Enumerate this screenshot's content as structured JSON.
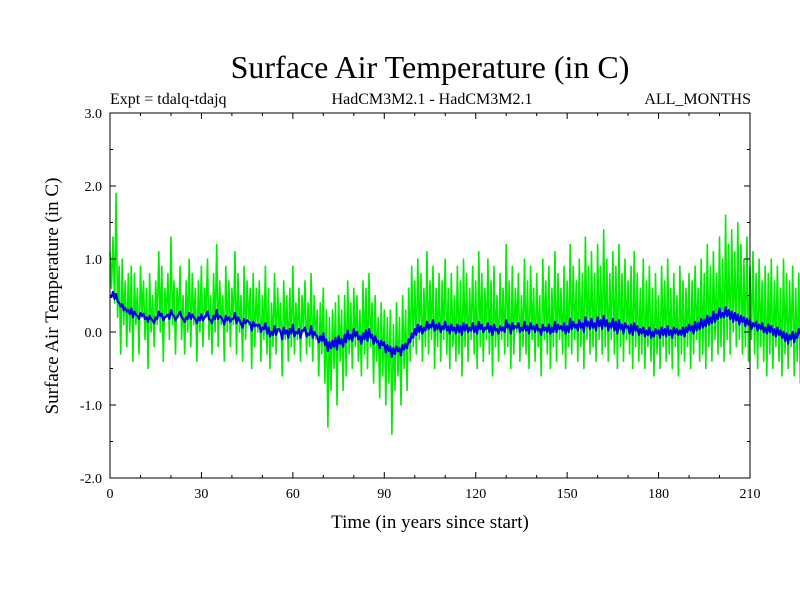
{
  "chart_data": {
    "type": "line",
    "title": "Surface Air Temperature (in C)",
    "subtitle_left": "Expt = tdalq-tdajq",
    "subtitle_center": "HadCM3M2.1 - HadCM3M2.1",
    "subtitle_right": "ALL_MONTHS",
    "xlabel": "Time (in years since start)",
    "ylabel": "Surface Air Temperature (in C)",
    "xlim": [
      0,
      210
    ],
    "ylim": [
      -2.0,
      3.0
    ],
    "x_ticks": [
      0,
      30,
      60,
      90,
      120,
      150,
      180,
      210
    ],
    "x_tick_labels": [
      "0",
      "30",
      "60",
      "90",
      "120",
      "150",
      "180",
      "210"
    ],
    "y_ticks": [
      -2.0,
      -1.0,
      0.0,
      1.0,
      2.0,
      3.0
    ],
    "y_tick_labels": [
      "-2.0",
      "-1.0",
      "0.0",
      "1.0",
      "2.0",
      "3.0"
    ],
    "series": [
      {
        "name": "monthly",
        "color": "#00ee00",
        "x_start": 0,
        "x_step": 0.5,
        "values": [
          1.1,
          0.6,
          1.3,
          0.4,
          1.9,
          0.2,
          0.9,
          -0.3,
          1.0,
          0.1,
          0.7,
          -0.2,
          0.8,
          0.0,
          0.9,
          -0.4,
          0.8,
          0.1,
          0.6,
          -0.3,
          0.9,
          0.2,
          0.7,
          -0.1,
          0.6,
          -0.5,
          0.8,
          0.0,
          0.5,
          -0.2,
          0.7,
          0.1,
          1.1,
          0.0,
          0.9,
          -0.4,
          0.6,
          0.2,
          0.8,
          -0.1,
          1.3,
          0.1,
          0.7,
          -0.3,
          0.6,
          0.2,
          0.9,
          -0.1,
          0.5,
          -0.3,
          0.7,
          0.0,
          1.0,
          -0.2,
          0.8,
          0.1,
          0.6,
          -0.4,
          0.7,
          0.0,
          0.9,
          -0.2,
          0.6,
          0.2,
          1.0,
          -0.1,
          0.5,
          -0.3,
          0.8,
          0.0,
          1.2,
          -0.2,
          0.7,
          0.1,
          0.5,
          -0.4,
          0.9,
          0.0,
          0.7,
          -0.2,
          0.6,
          0.1,
          1.1,
          -0.3,
          0.8,
          0.0,
          0.5,
          -0.4,
          0.9,
          -0.1,
          0.7,
          0.1,
          0.6,
          -0.5,
          0.8,
          -0.2,
          0.6,
          0.0,
          0.7,
          -0.4,
          0.5,
          -0.1,
          0.9,
          -0.3,
          0.6,
          -0.5,
          0.4,
          -0.2,
          0.8,
          -0.3,
          0.6,
          0.0,
          0.4,
          -0.6,
          0.7,
          -0.1,
          0.5,
          -0.4,
          0.6,
          -0.2,
          0.9,
          -0.3,
          0.4,
          -0.1,
          0.6,
          -0.4,
          0.5,
          0.0,
          0.7,
          -0.3,
          0.4,
          -0.2,
          0.8,
          -0.4,
          0.5,
          -0.1,
          0.3,
          -0.6,
          0.4,
          -0.3,
          0.6,
          -0.7,
          0.3,
          -1.3,
          0.2,
          -0.8,
          0.3,
          -0.5,
          0.4,
          -1.0,
          0.5,
          -0.4,
          0.3,
          -0.8,
          0.5,
          -0.6,
          0.7,
          -0.3,
          0.4,
          -0.5,
          0.6,
          -0.2,
          0.5,
          -0.4,
          0.3,
          -0.6,
          0.7,
          -0.3,
          0.6,
          -0.5,
          0.8,
          -0.2,
          0.4,
          -0.7,
          0.5,
          -0.4,
          0.2,
          -0.9,
          0.4,
          -0.6,
          0.3,
          -1.0,
          0.2,
          -0.7,
          0.3,
          -1.4,
          0.1,
          -0.8,
          0.4,
          -0.6,
          0.2,
          -1.0,
          0.5,
          -0.5,
          0.3,
          -0.8,
          0.6,
          -0.4,
          0.9,
          -0.2,
          0.7,
          -0.3,
          1.0,
          -0.1,
          0.8,
          -0.4,
          0.6,
          -0.2,
          1.1,
          -0.3,
          0.7,
          -0.1,
          0.9,
          -0.5,
          0.6,
          -0.2,
          0.8,
          -0.4,
          0.7,
          -0.1,
          1.0,
          -0.3,
          0.6,
          -0.5,
          0.8,
          -0.2,
          0.5,
          -0.4,
          0.9,
          -0.3,
          0.7,
          -0.6,
          1.0,
          -0.2,
          0.8,
          -0.4,
          0.6,
          -0.1,
          0.9,
          -0.3,
          0.7,
          -0.5,
          1.1,
          -0.2,
          0.8,
          -0.4,
          0.6,
          -0.1,
          1.0,
          -0.3,
          0.7,
          -0.6,
          0.9,
          -0.2,
          0.5,
          -0.4,
          0.8,
          -0.1,
          0.6,
          -0.3,
          1.2,
          -0.2,
          0.7,
          -0.5,
          0.9,
          -0.3,
          0.6,
          0.0,
          0.8,
          -0.4,
          0.5,
          -0.2,
          1.0,
          -0.3,
          0.7,
          -0.5,
          0.9,
          -0.1,
          0.6,
          -0.4,
          0.8,
          -0.2,
          0.5,
          -0.6,
          1.0,
          -0.1,
          0.7,
          -0.3,
          0.9,
          -0.5,
          0.6,
          -0.2,
          1.1,
          -0.4,
          0.8,
          -0.1,
          0.6,
          -0.3,
          0.9,
          -0.5,
          0.7,
          -0.2,
          1.2,
          -0.3,
          0.9,
          -0.1,
          0.7,
          -0.4,
          1.0,
          -0.2,
          0.8,
          -0.5,
          1.3,
          -0.1,
          0.9,
          -0.3,
          1.1,
          -0.2,
          0.8,
          -0.4,
          1.2,
          -0.1,
          0.9,
          -0.3,
          1.4,
          -0.2,
          1.0,
          -0.4,
          0.8,
          -0.1,
          1.1,
          -0.3,
          0.9,
          -0.5,
          1.2,
          -0.2,
          0.8,
          -0.4,
          1.0,
          -0.1,
          0.7,
          -0.3,
          0.9,
          -0.5,
          1.1,
          -0.2,
          0.8,
          -0.4,
          0.6,
          -0.3,
          1.0,
          -0.5,
          0.7,
          -0.2,
          0.9,
          -0.4,
          0.6,
          -0.6,
          0.8,
          -0.3,
          0.5,
          -0.5,
          0.9,
          -0.2,
          0.7,
          -0.4,
          1.0,
          -0.3,
          0.6,
          -0.5,
          0.8,
          -0.2,
          0.5,
          -0.6,
          0.9,
          -0.3,
          0.7,
          -0.4,
          0.6,
          -0.2,
          0.8,
          -0.5,
          0.7,
          -0.3,
          0.9,
          -0.1,
          0.6,
          -0.4,
          1.0,
          -0.3,
          0.8,
          -0.5,
          1.2,
          -0.2,
          0.9,
          -0.4,
          1.1,
          -0.1,
          0.8,
          -0.3,
          1.3,
          -0.2,
          1.0,
          -0.4,
          1.6,
          -0.1,
          1.2,
          -0.3,
          1.4,
          0.0,
          1.1,
          -0.2,
          1.5,
          -0.1,
          1.2,
          -0.3,
          1.0,
          -0.2,
          1.3,
          -0.4,
          0.9,
          -0.1,
          1.1,
          -0.3,
          0.8,
          -0.5,
          1.0,
          -0.2,
          0.7,
          -0.4,
          0.9,
          -0.6,
          0.8,
          -0.3,
          1.0,
          -0.5,
          0.7,
          -0.2,
          0.9,
          -0.4,
          0.6,
          -0.6,
          1.0,
          -0.3,
          0.8,
          -0.5,
          0.7,
          -0.2,
          0.9,
          -0.6,
          0.6,
          -0.4,
          0.8,
          -0.7,
          0.5,
          -0.9,
          0.6,
          -1.2,
          0.4,
          -0.8,
          0.7,
          -1.4,
          0.5,
          -0.6,
          0.9,
          -0.3,
          1.0,
          -0.4,
          0.8,
          -0.2,
          1.1,
          -0.5,
          0.7,
          -0.3,
          0.9,
          -0.6,
          0.6,
          -0.4,
          0.8,
          -0.7,
          0.5,
          -0.9,
          0.6,
          -0.5,
          0.4,
          -0.8,
          0.5,
          -1.0,
          0.3,
          -0.7,
          0.4,
          -1.3,
          0.2,
          -0.8,
          0.3,
          -1.1,
          0.1,
          -0.9,
          0.2,
          -1.3,
          0.0,
          -0.7,
          -0.4,
          -0.9
        ]
      },
      {
        "name": "running mean",
        "color": "#0000ee",
        "x_start": 0,
        "x_step": 0.5,
        "values": [
          0.5,
          0.48,
          0.55,
          0.45,
          0.52,
          0.42,
          0.4,
          0.35,
          0.38,
          0.3,
          0.33,
          0.28,
          0.3,
          0.25,
          0.32,
          0.2,
          0.28,
          0.24,
          0.22,
          0.18,
          0.26,
          0.22,
          0.25,
          0.18,
          0.2,
          0.14,
          0.22,
          0.18,
          0.16,
          0.12,
          0.2,
          0.18,
          0.28,
          0.22,
          0.25,
          0.16,
          0.2,
          0.22,
          0.24,
          0.18,
          0.3,
          0.24,
          0.22,
          0.16,
          0.2,
          0.24,
          0.28,
          0.2,
          0.18,
          0.14,
          0.2,
          0.18,
          0.26,
          0.18,
          0.24,
          0.2,
          0.18,
          0.12,
          0.2,
          0.16,
          0.24,
          0.16,
          0.2,
          0.22,
          0.28,
          0.18,
          0.16,
          0.12,
          0.22,
          0.18,
          0.3,
          0.18,
          0.22,
          0.2,
          0.16,
          0.1,
          0.22,
          0.16,
          0.2,
          0.14,
          0.18,
          0.18,
          0.26,
          0.12,
          0.2,
          0.16,
          0.12,
          0.06,
          0.18,
          0.12,
          0.16,
          0.14,
          0.12,
          0.02,
          0.14,
          0.08,
          0.1,
          0.08,
          0.1,
          0.0,
          0.06,
          0.04,
          0.12,
          -0.02,
          0.06,
          -0.06,
          0.0,
          -0.04,
          0.08,
          -0.04,
          0.04,
          0.04,
          0.0,
          -0.1,
          0.06,
          -0.02,
          0.02,
          -0.08,
          0.04,
          -0.02,
          0.1,
          -0.06,
          0.0,
          -0.02,
          0.04,
          -0.08,
          0.02,
          0.02,
          0.06,
          -0.06,
          -0.02,
          -0.04,
          0.08,
          -0.08,
          0.0,
          -0.04,
          -0.06,
          -0.14,
          -0.06,
          -0.12,
          -0.02,
          -0.18,
          -0.1,
          -0.26,
          -0.14,
          -0.22,
          -0.12,
          -0.2,
          -0.08,
          -0.24,
          -0.06,
          -0.16,
          -0.1,
          -0.2,
          -0.04,
          -0.14,
          0.02,
          -0.1,
          -0.04,
          -0.12,
          0.04,
          -0.06,
          0.0,
          -0.1,
          -0.06,
          -0.16,
          -0.02,
          -0.1,
          0.02,
          -0.12,
          0.04,
          -0.08,
          -0.04,
          -0.16,
          -0.06,
          -0.14,
          -0.12,
          -0.22,
          -0.12,
          -0.18,
          -0.14,
          -0.28,
          -0.18,
          -0.26,
          -0.2,
          -0.34,
          -0.22,
          -0.3,
          -0.2,
          -0.26,
          -0.22,
          -0.32,
          -0.18,
          -0.24,
          -0.16,
          -0.22,
          -0.1,
          -0.14,
          -0.02,
          -0.08,
          0.04,
          -0.04,
          0.1,
          0.0,
          0.08,
          -0.02,
          0.06,
          0.02,
          0.14,
          0.04,
          0.1,
          0.06,
          0.16,
          0.02,
          0.1,
          0.04,
          0.12,
          0.0,
          0.08,
          0.04,
          0.14,
          0.02,
          0.08,
          -0.02,
          0.1,
          0.02,
          0.06,
          -0.02,
          0.1,
          0.0,
          0.08,
          -0.04,
          0.12,
          0.02,
          0.1,
          0.0,
          0.06,
          0.02,
          0.12,
          0.0,
          0.08,
          -0.02,
          0.14,
          0.04,
          0.1,
          0.0,
          0.06,
          0.04,
          0.12,
          0.0,
          0.08,
          -0.04,
          0.1,
          0.02,
          0.04,
          -0.02,
          0.08,
          0.02,
          0.06,
          0.0,
          0.16,
          0.06,
          0.1,
          -0.02,
          0.12,
          0.04,
          0.08,
          0.06,
          0.12,
          0.0,
          0.06,
          0.02,
          0.14,
          0.02,
          0.08,
          -0.02,
          0.12,
          0.04,
          0.08,
          0.0,
          0.1,
          0.02,
          0.04,
          -0.04,
          0.1,
          0.02,
          0.06,
          0.0,
          0.1,
          -0.02,
          0.06,
          0.0,
          0.14,
          0.0,
          0.1,
          0.04,
          0.08,
          0.02,
          0.12,
          -0.02,
          0.08,
          0.0,
          0.18,
          0.04,
          0.14,
          0.06,
          0.1,
          0.02,
          0.16,
          0.06,
          0.12,
          0.0,
          0.2,
          0.08,
          0.14,
          0.04,
          0.18,
          0.06,
          0.12,
          0.02,
          0.2,
          0.08,
          0.16,
          0.04,
          0.22,
          0.08,
          0.16,
          0.02,
          0.12,
          0.06,
          0.18,
          0.02,
          0.14,
          -0.02,
          0.16,
          0.04,
          0.1,
          -0.02,
          0.12,
          0.06,
          0.08,
          -0.02,
          0.1,
          -0.04,
          0.12,
          0.02,
          0.08,
          -0.04,
          0.04,
          -0.02,
          0.06,
          -0.06,
          0.02,
          -0.04,
          0.06,
          -0.08,
          0.0,
          -0.06,
          0.04,
          -0.02,
          0.02,
          -0.08,
          0.06,
          -0.04,
          0.04,
          -0.06,
          0.08,
          -0.04,
          0.02,
          -0.08,
          0.06,
          -0.02,
          0.04,
          -0.04,
          0.02,
          -0.04,
          0.06,
          -0.06,
          0.06,
          0.0,
          0.1,
          0.02,
          0.08,
          -0.02,
          0.14,
          0.02,
          0.12,
          0.04,
          0.18,
          0.06,
          0.16,
          0.08,
          0.22,
          0.1,
          0.2,
          0.12,
          0.28,
          0.14,
          0.24,
          0.18,
          0.32,
          0.2,
          0.26,
          0.2,
          0.34,
          0.22,
          0.3,
          0.18,
          0.28,
          0.14,
          0.26,
          0.16,
          0.24,
          0.1,
          0.22,
          0.14,
          0.2,
          0.08,
          0.18,
          0.1,
          0.16,
          0.04,
          0.12,
          0.08,
          0.14,
          0.02,
          0.1,
          0.04,
          0.12,
          0.0,
          0.06,
          -0.02,
          0.1,
          0.0,
          0.08,
          -0.04,
          0.04,
          -0.06,
          0.06,
          -0.04,
          0.02,
          -0.08,
          0.0,
          -0.12,
          -0.02,
          -0.16,
          -0.04,
          -0.1,
          0.0,
          -0.14,
          -0.02,
          -0.08,
          0.04,
          -0.02,
          0.06,
          -0.04,
          0.08,
          0.0,
          0.1,
          -0.02,
          0.06,
          -0.04,
          0.08,
          -0.08,
          0.02,
          -0.06,
          0.0,
          -0.12,
          -0.04,
          -0.16,
          -0.08,
          -0.14,
          -0.2,
          -0.12,
          -0.24,
          -0.16,
          -0.28,
          -0.2,
          -0.32,
          -0.22,
          -0.3,
          -0.36,
          -0.26,
          -0.34,
          -0.22,
          -0.3,
          -0.18,
          -0.26,
          -0.16,
          -0.22
        ]
      }
    ]
  }
}
